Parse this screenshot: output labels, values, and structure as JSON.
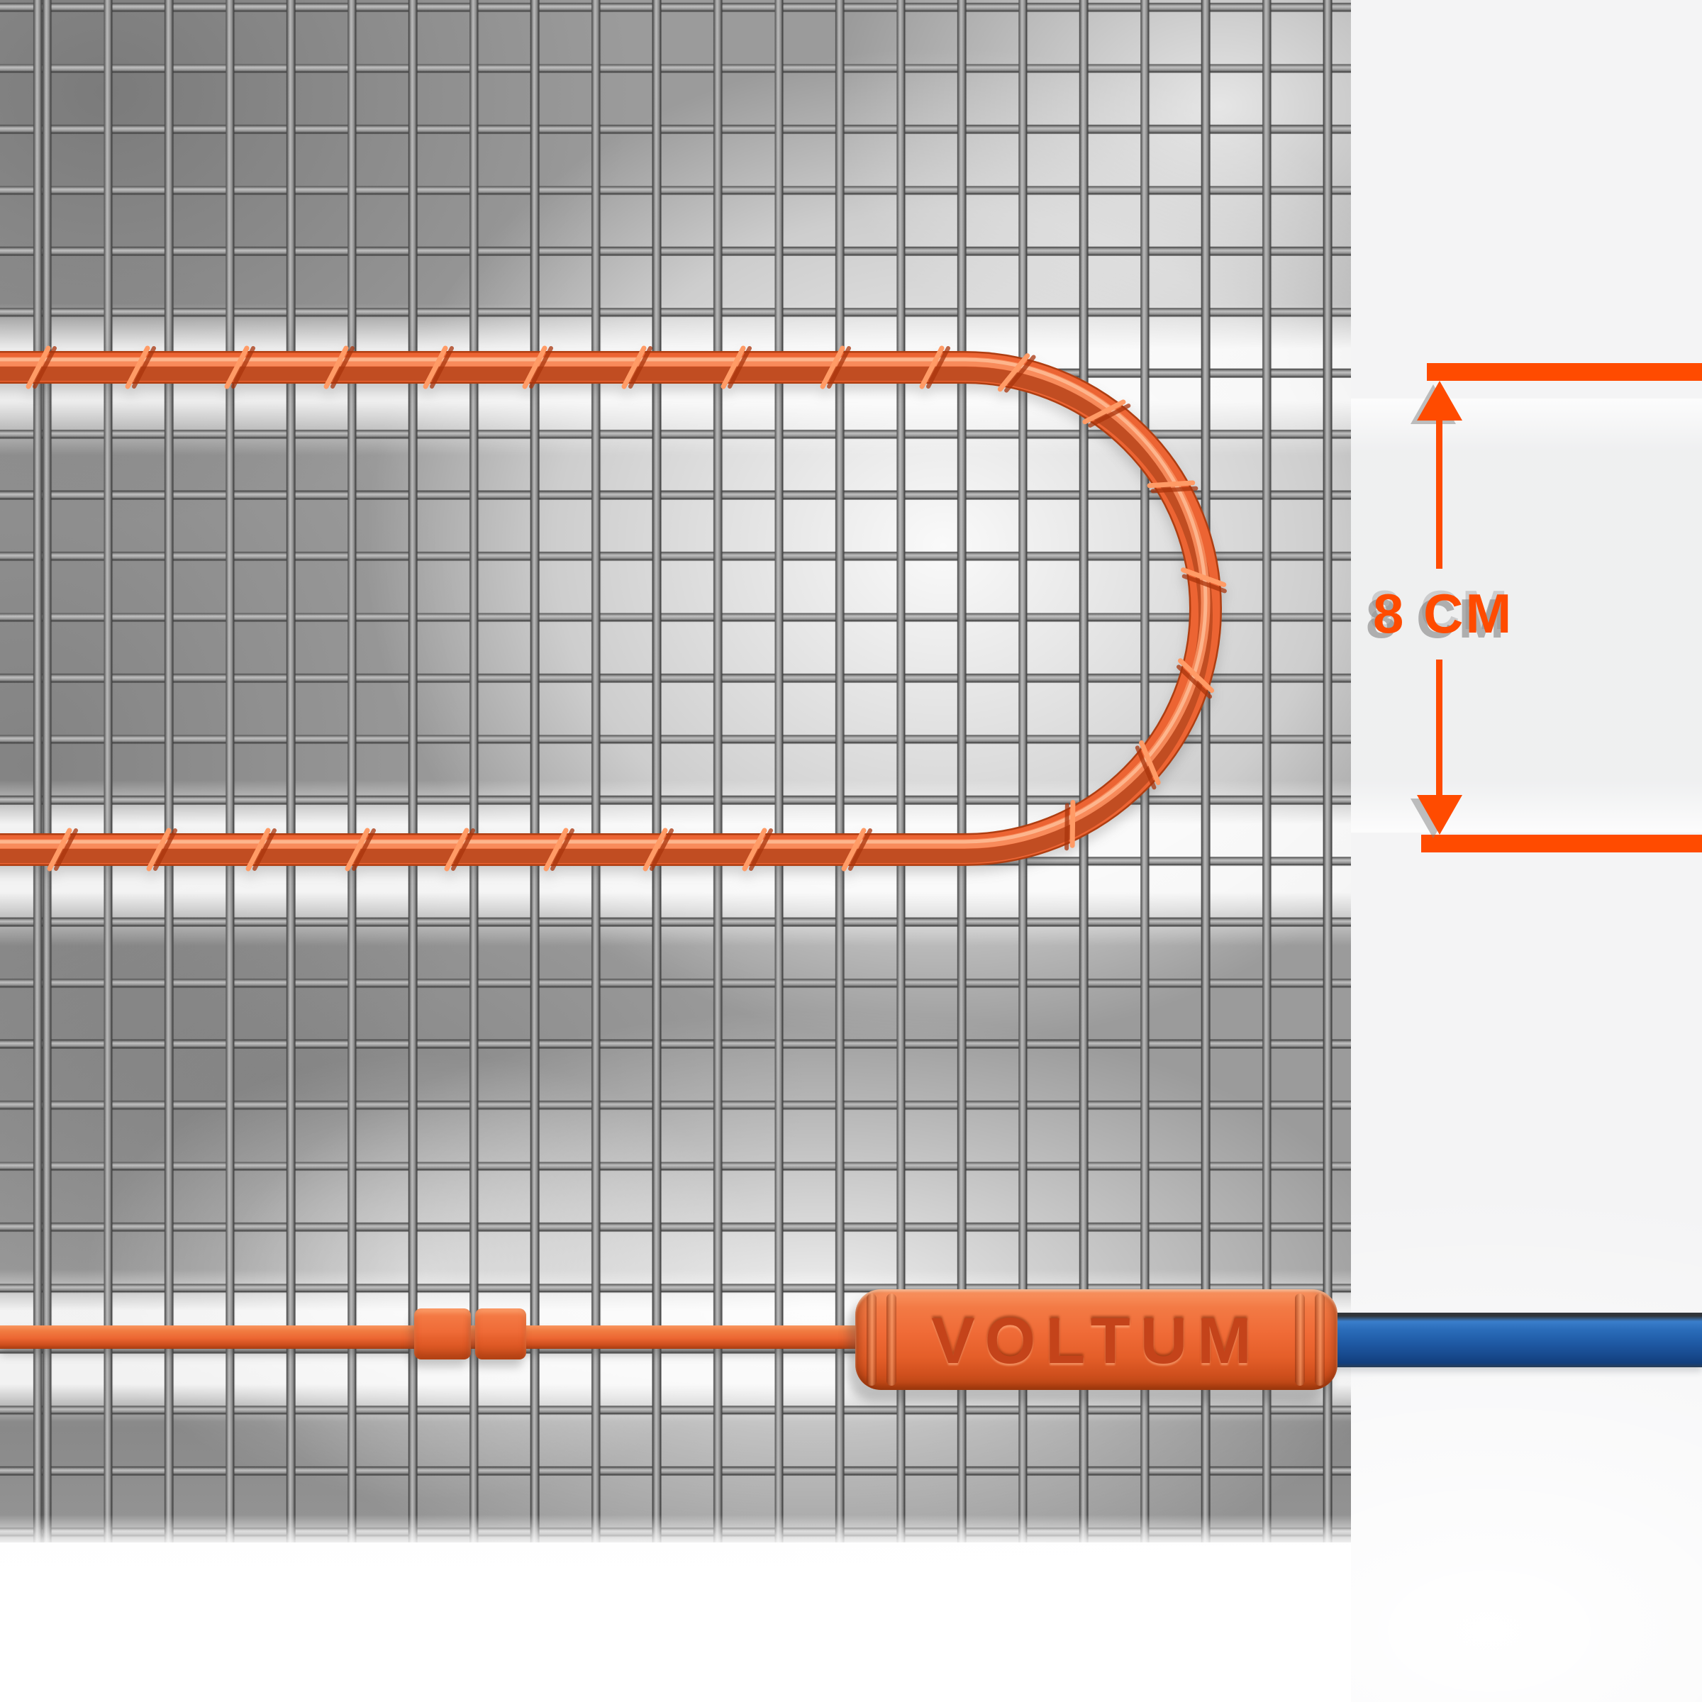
{
  "illustration": {
    "dimension_label": "8 CM",
    "brand_label": "VOLTUM"
  },
  "theme": {
    "accent_orange": "#FF4B00",
    "cable_orange": "#EC6433",
    "cable_highlight": "#F98F5F",
    "cable_shadow": "#A8340C",
    "connector_orange": "#EF6A36",
    "brand_text_orange": "#C4431A",
    "cord_blue": "#1F5AA5",
    "mesh_base_gray": "#9B9B9B",
    "wire_dark_gray": "#3D3D3D",
    "wire_light_gray": "#BDBDBD",
    "shadow_gray": "#828282",
    "page_background": "#F4F4F5"
  }
}
